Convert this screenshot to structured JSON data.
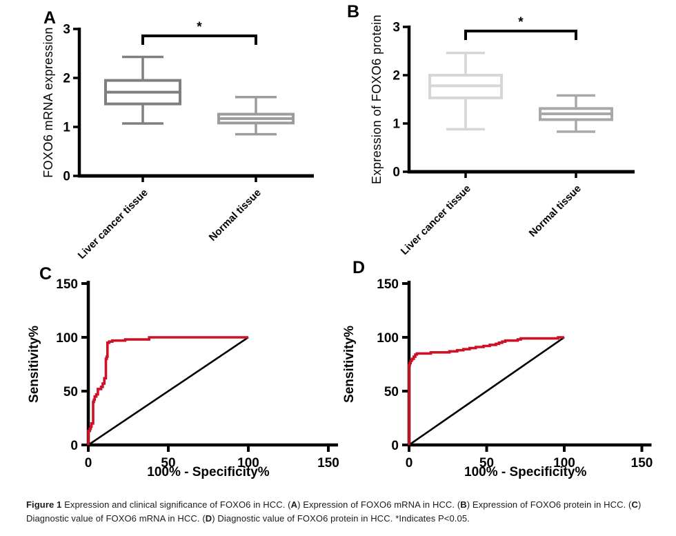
{
  "figure_title": "Figure 1",
  "chart_data": [
    {
      "type": "box",
      "panel": "A",
      "ylabel": "FOXO6 mRNA expression",
      "ylim": [
        0,
        3
      ],
      "yticks": [
        0,
        1,
        2,
        3
      ],
      "grid": false,
      "categories": [
        "Liver cancer tissue",
        "Normal tissue"
      ],
      "series": [
        {
          "name": "Liver cancer tissue",
          "min": 1.07,
          "q1": 1.47,
          "median": 1.71,
          "q3": 1.95,
          "max": 2.43,
          "color": "#7f7f7f"
        },
        {
          "name": "Normal tissue",
          "min": 0.85,
          "q1": 1.08,
          "median": 1.17,
          "q3": 1.26,
          "max": 1.61,
          "color": "#9c9c9c"
        }
      ],
      "significance": {
        "label": "*",
        "between": [
          "Liver cancer tissue",
          "Normal tissue"
        ]
      }
    },
    {
      "type": "box",
      "panel": "B",
      "ylabel": "Expression of FOXO6 protein",
      "ylim": [
        0,
        3
      ],
      "yticks": [
        0,
        1,
        2,
        3
      ],
      "grid": false,
      "categories": [
        "Liver cancer tissue",
        "Normal tissue"
      ],
      "series": [
        {
          "name": "Liver cancer tissue",
          "min": 0.88,
          "q1": 1.53,
          "median": 1.78,
          "q3": 2.0,
          "max": 2.46,
          "color": "#d6d6d6"
        },
        {
          "name": "Normal tissue",
          "min": 0.83,
          "q1": 1.08,
          "median": 1.2,
          "q3": 1.31,
          "max": 1.58,
          "color": "#a8a8a8"
        }
      ],
      "significance": {
        "label": "*",
        "between": [
          "Liver cancer tissue",
          "Normal tissue"
        ]
      }
    },
    {
      "type": "line",
      "panel": "C",
      "xlabel": "100% - Specificity%",
      "ylabel": "Sensitivity%",
      "xlim": [
        0,
        150
      ],
      "ylim": [
        0,
        150
      ],
      "xticks": [
        0,
        50,
        100,
        150
      ],
      "yticks": [
        0,
        50,
        100,
        150
      ],
      "grid": false,
      "series": [
        {
          "name": "ROC curve (FOXO6 mRNA)",
          "color": "#ce1126",
          "points": [
            [
              0,
              0
            ],
            [
              0,
              13
            ],
            [
              1,
              13
            ],
            [
              1,
              15
            ],
            [
              1.5,
              15
            ],
            [
              1.5,
              17
            ],
            [
              2,
              17
            ],
            [
              2,
              20
            ],
            [
              3,
              20
            ],
            [
              3,
              40
            ],
            [
              3.5,
              40
            ],
            [
              3.5,
              42
            ],
            [
              4,
              42
            ],
            [
              4,
              45
            ],
            [
              5,
              45
            ],
            [
              5,
              47
            ],
            [
              6,
              47
            ],
            [
              6,
              52
            ],
            [
              8,
              52
            ],
            [
              8,
              54
            ],
            [
              9,
              54
            ],
            [
              9,
              57
            ],
            [
              10,
              57
            ],
            [
              10,
              62
            ],
            [
              11,
              62
            ],
            [
              11,
              80
            ],
            [
              11.5,
              80
            ],
            [
              11.5,
              82
            ],
            [
              12,
              82
            ],
            [
              12,
              95
            ],
            [
              13,
              95
            ],
            [
              13,
              96
            ],
            [
              15,
              96
            ],
            [
              15,
              97
            ],
            [
              23,
              97
            ],
            [
              23,
              98
            ],
            [
              38,
              98
            ],
            [
              38,
              100
            ],
            [
              100,
              100
            ]
          ]
        },
        {
          "name": "Reference diagonal",
          "color": "#000000",
          "points": [
            [
              0,
              0
            ],
            [
              100,
              100
            ]
          ]
        }
      ]
    },
    {
      "type": "line",
      "panel": "D",
      "xlabel": "100% - Specificity%",
      "ylabel": "Sensitivity%",
      "xlim": [
        0,
        150
      ],
      "ylim": [
        0,
        150
      ],
      "xticks": [
        0,
        50,
        100,
        150
      ],
      "yticks": [
        0,
        50,
        100,
        150
      ],
      "grid": false,
      "series": [
        {
          "name": "ROC curve (FOXO6 protein)",
          "color": "#ce1126",
          "points": [
            [
              0,
              0
            ],
            [
              0,
              74
            ],
            [
              0.5,
              74
            ],
            [
              0.5,
              76
            ],
            [
              1,
              76
            ],
            [
              1,
              78
            ],
            [
              1.5,
              78
            ],
            [
              1.5,
              79
            ],
            [
              2,
              79
            ],
            [
              2,
              80
            ],
            [
              3,
              80
            ],
            [
              3,
              82
            ],
            [
              4,
              82
            ],
            [
              4,
              84
            ],
            [
              5,
              84
            ],
            [
              5,
              85
            ],
            [
              14,
              85
            ],
            [
              14,
              86
            ],
            [
              26,
              86
            ],
            [
              26,
              87
            ],
            [
              31,
              87
            ],
            [
              31,
              88
            ],
            [
              35,
              88
            ],
            [
              35,
              89
            ],
            [
              39,
              89
            ],
            [
              39,
              90
            ],
            [
              43,
              90
            ],
            [
              43,
              91
            ],
            [
              48,
              91
            ],
            [
              48,
              92
            ],
            [
              52,
              92
            ],
            [
              52,
              93
            ],
            [
              56,
              93
            ],
            [
              56,
              94
            ],
            [
              58,
              94
            ],
            [
              58,
              95
            ],
            [
              60,
              95
            ],
            [
              60,
              96
            ],
            [
              62,
              96
            ],
            [
              62,
              97
            ],
            [
              70,
              97
            ],
            [
              70,
              98
            ],
            [
              72,
              98
            ],
            [
              72,
              99
            ],
            [
              96,
              99
            ],
            [
              96,
              100
            ],
            [
              100,
              100
            ]
          ]
        },
        {
          "name": "Reference diagonal",
          "color": "#000000",
          "points": [
            [
              0,
              0
            ],
            [
              100,
              100
            ]
          ]
        }
      ]
    }
  ],
  "caption": {
    "segments": [
      {
        "text": "Figure 1",
        "bold": true
      },
      {
        "text": " Expression and clinical significance of FOXO6 in HCC. (",
        "bold": false
      },
      {
        "text": "A",
        "bold": true
      },
      {
        "text": ") Expression of FOXO6 mRNA in HCC. (",
        "bold": false
      },
      {
        "text": "B",
        "bold": true
      },
      {
        "text": ") Expression of FOXO6 protein in HCC. (",
        "bold": false
      },
      {
        "text": "C",
        "bold": true
      },
      {
        "text": ") Diagnostic value of FOXO6 mRNA in HCC. (",
        "bold": false
      },
      {
        "text": "D",
        "bold": true
      },
      {
        "text": ") Diagnostic value of FOXO6 protein in HCC. *Indicates P<0.05.",
        "bold": false
      }
    ]
  }
}
